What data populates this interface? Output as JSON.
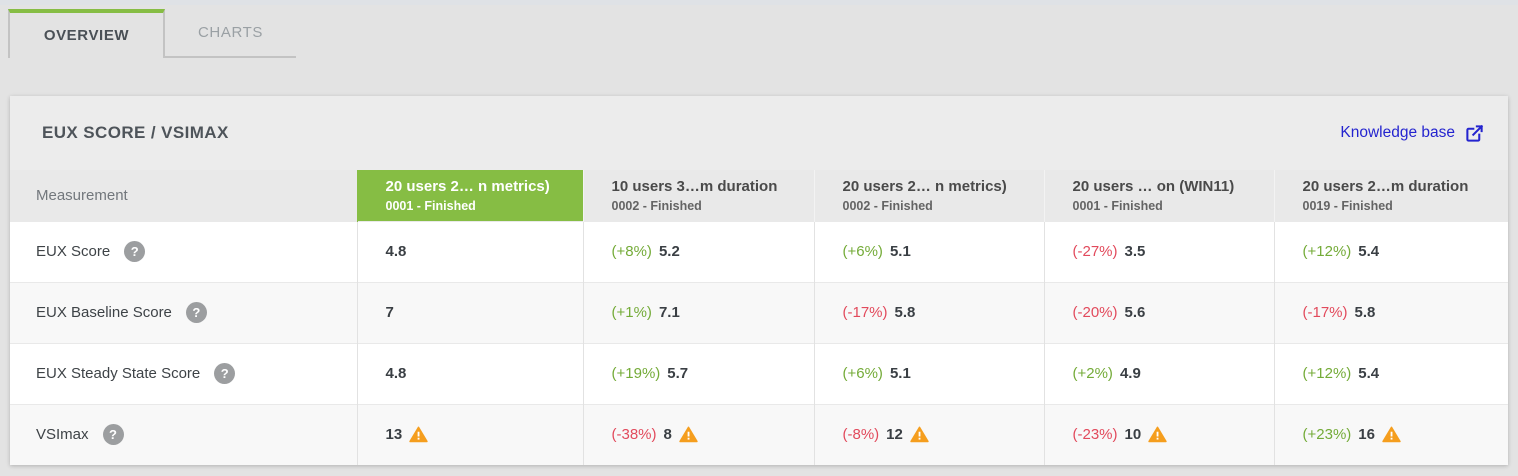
{
  "tabs": [
    {
      "label": "OVERVIEW",
      "active": true
    },
    {
      "label": "CHARTS",
      "active": false
    }
  ],
  "panel": {
    "title": "EUX SCORE / VSIMAX",
    "knowledge_base": {
      "label": "Knowledge base",
      "icon": "external-link-icon"
    }
  },
  "table": {
    "measurement_header": "Measurement",
    "columns": [
      {
        "title": "20 users 2… n metrics)",
        "subtitle": "0001 - Finished",
        "highlighted": true
      },
      {
        "title": "10 users 3…m duration",
        "subtitle": "0002 - Finished",
        "highlighted": false
      },
      {
        "title": "20 users 2… n metrics)",
        "subtitle": "0002 - Finished",
        "highlighted": false
      },
      {
        "title": "20 users … on (WIN11)",
        "subtitle": "0001 - Finished",
        "highlighted": false
      },
      {
        "title": "20 users 2…m duration",
        "subtitle": "0019 - Finished",
        "highlighted": false
      }
    ],
    "rows": [
      {
        "label": "EUX Score",
        "help_icon": "help-icon",
        "cells": [
          {
            "value": "4.8"
          },
          {
            "pct": "(+8%)",
            "trend": "up",
            "value": "5.2"
          },
          {
            "pct": "(+6%)",
            "trend": "up",
            "value": "5.1"
          },
          {
            "pct": "(-27%)",
            "trend": "down",
            "value": "3.5"
          },
          {
            "pct": "(+12%)",
            "trend": "up",
            "value": "5.4"
          }
        ]
      },
      {
        "label": "EUX Baseline Score",
        "help_icon": "help-icon",
        "cells": [
          {
            "value": "7"
          },
          {
            "pct": "(+1%)",
            "trend": "up",
            "value": "7.1"
          },
          {
            "pct": "(-17%)",
            "trend": "down",
            "value": "5.8"
          },
          {
            "pct": "(-20%)",
            "trend": "down",
            "value": "5.6"
          },
          {
            "pct": "(-17%)",
            "trend": "down",
            "value": "5.8"
          }
        ]
      },
      {
        "label": "EUX Steady State Score",
        "help_icon": "help-icon",
        "cells": [
          {
            "value": "4.8"
          },
          {
            "pct": "(+19%)",
            "trend": "up",
            "value": "5.7"
          },
          {
            "pct": "(+6%)",
            "trend": "up",
            "value": "5.1"
          },
          {
            "pct": "(+2%)",
            "trend": "up",
            "value": "4.9"
          },
          {
            "pct": "(+12%)",
            "trend": "up",
            "value": "5.4"
          }
        ]
      },
      {
        "label": "VSImax",
        "help_icon": "help-icon",
        "cells": [
          {
            "value": "13",
            "warning": true
          },
          {
            "pct": "(-38%)",
            "trend": "down",
            "value": "8",
            "warning": true
          },
          {
            "pct": "(-8%)",
            "trend": "down",
            "value": "12",
            "warning": true
          },
          {
            "pct": "(-23%)",
            "trend": "down",
            "value": "10",
            "warning": true
          },
          {
            "pct": "(+23%)",
            "trend": "up",
            "value": "16",
            "warning": true
          }
        ]
      }
    ]
  },
  "colors": {
    "accent_green": "#86bd44",
    "trend_up": "#74ab38",
    "trend_down": "#e24a5c",
    "warning_orange": "#F59E1E",
    "link_blue": "#2424cf"
  }
}
